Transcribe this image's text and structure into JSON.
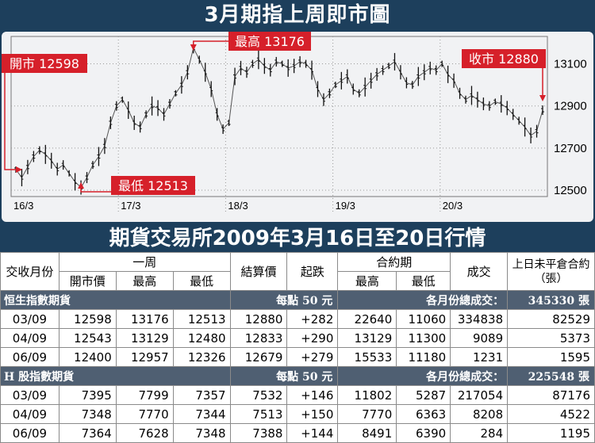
{
  "chart_title": "3月期指上周即市圖",
  "table_title": "期貨交易所2009年3月16日至20日行情",
  "chart_data": {
    "type": "line",
    "title": "3月期指上周即市圖",
    "x_labels": [
      "16/3",
      "17/3",
      "18/3",
      "19/3",
      "20/3"
    ],
    "y_ticks": [
      12500,
      12700,
      12900,
      13100
    ],
    "ylim": [
      12470,
      13230
    ],
    "y_axis_position": "right",
    "grid": true,
    "series": [
      {
        "values": [
          12598,
          12560,
          12610,
          12660,
          12690,
          12670,
          12640,
          12600,
          12620,
          12580,
          12540,
          12513,
          12560,
          12620,
          12660,
          12710,
          12820,
          12900,
          12930,
          12880,
          12820,
          12800,
          12860,
          12900,
          12890,
          12860,
          12910,
          12960,
          13000,
          13060,
          13176,
          13120,
          13060,
          12980,
          12860,
          12790,
          12820,
          13040,
          13080,
          13060,
          13100,
          13120,
          13090,
          13070,
          13110,
          13100,
          13080,
          13090,
          13110,
          13100,
          13070,
          12980,
          12930,
          12960,
          13000,
          13020,
          13040,
          12980,
          12960,
          12990,
          13020,
          13050,
          13070,
          13090,
          13110,
          13060,
          13010,
          13000,
          13040,
          13060,
          13080,
          13070,
          13100,
          13050,
          13020,
          12960,
          12930,
          12950,
          12930,
          12910,
          12900,
          12920,
          12910,
          12890,
          12860,
          12830,
          12800,
          12760,
          12780,
          12880
        ]
      }
    ],
    "annotations": [
      {
        "label": "開市",
        "value": "12598"
      },
      {
        "label": "最高",
        "value": "13176"
      },
      {
        "label": "最低",
        "value": "12513"
      },
      {
        "label": "收市",
        "value": "12880"
      }
    ]
  },
  "table": {
    "headers": {
      "month": "交收月份",
      "week": "一周",
      "open": "開市價",
      "high": "最高",
      "low": "最低",
      "settle": "結算價",
      "change": "起跌",
      "contract": "合約期",
      "c_high": "最高",
      "c_low": "最低",
      "volume": "成交",
      "oi": "上日未平倉合約（張）"
    },
    "sections": [
      {
        "name": "恒生指數期貨",
        "per_point": "每點 50 元",
        "total_label": "各月份總成交：",
        "total": "345330 張",
        "rows": [
          [
            "03/09",
            "12598",
            "13176",
            "12513",
            "12880",
            "+282",
            "22640",
            "11060",
            "334838",
            "82529"
          ],
          [
            "04/09",
            "12543",
            "13129",
            "12480",
            "12833",
            "+290",
            "13129",
            "11300",
            "9089",
            "5373"
          ],
          [
            "06/09",
            "12400",
            "12957",
            "12326",
            "12679",
            "+279",
            "15533",
            "11180",
            "1231",
            "1595"
          ]
        ]
      },
      {
        "name": "H 股指數期貨",
        "per_point": "每點 50 元",
        "total_label": "各月份總成交：",
        "total": "225548 張",
        "rows": [
          [
            "03/09",
            "7395",
            "7799",
            "7357",
            "7532",
            "+146",
            "11802",
            "5287",
            "217054",
            "87176"
          ],
          [
            "04/09",
            "7348",
            "7770",
            "7344",
            "7513",
            "+150",
            "7770",
            "6363",
            "8208",
            "4522"
          ],
          [
            "06/09",
            "7364",
            "7628",
            "7348",
            "7388",
            "+144",
            "8491",
            "6390",
            "284",
            "1195"
          ]
        ]
      }
    ]
  }
}
